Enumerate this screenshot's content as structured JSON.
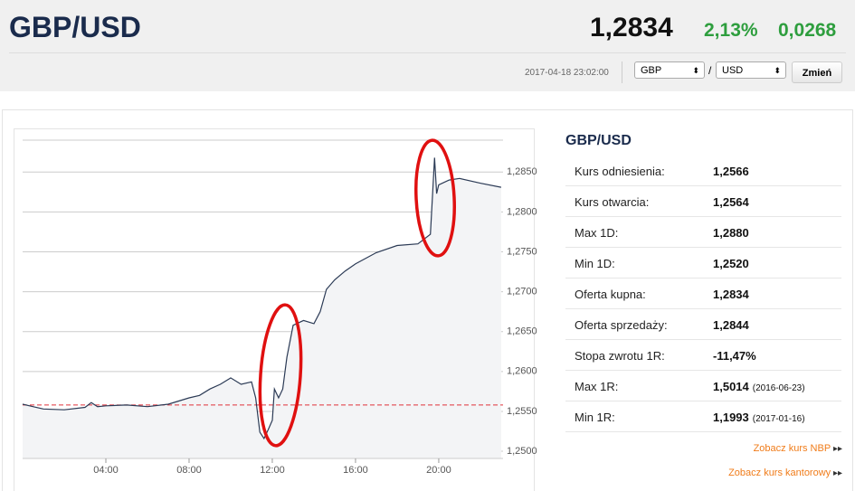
{
  "header": {
    "title": "GBP/USD",
    "price": "1,2834",
    "change_pct": "2,13%",
    "change_abs": "0,0268",
    "timestamp": "2017-04-18 23:02:00",
    "base_currency": "GBP",
    "separator": "/",
    "quote_currency": "USD",
    "button": "Zmień"
  },
  "chart_data": {
    "type": "line",
    "x": [
      0,
      0.5,
      1,
      2,
      3,
      3.3,
      3.6,
      4,
      5,
      6,
      7,
      8,
      8.5,
      9,
      9.5,
      10,
      10.5,
      11,
      11.2,
      11.4,
      11.6,
      11.8,
      12,
      12.1,
      12.3,
      12.5,
      12.7,
      13,
      13.5,
      14,
      14.3,
      14.6,
      15,
      15.5,
      16,
      17,
      18,
      19,
      19.6,
      19.8,
      19.9,
      20,
      20.5,
      21,
      22,
      23
    ],
    "series": [
      {
        "color": "#2b3a55",
        "values": [
          1.2559,
          1.2556,
          1.2553,
          1.2552,
          1.2555,
          1.2561,
          1.2556,
          1.2557,
          1.2558,
          1.2556,
          1.2559,
          1.2567,
          1.257,
          1.2578,
          1.2584,
          1.2592,
          1.2584,
          1.2587,
          1.2567,
          1.2524,
          1.2516,
          1.2527,
          1.2539,
          1.2578,
          1.2567,
          1.2578,
          1.2618,
          1.2658,
          1.2664,
          1.266,
          1.2675,
          1.2703,
          1.2715,
          1.2726,
          1.2735,
          1.2749,
          1.2758,
          1.276,
          1.2772,
          1.2868,
          1.2823,
          1.2834,
          1.284,
          1.2842,
          1.2836,
          1.2831
        ]
      }
    ],
    "xlim": [
      0,
      23.09
    ],
    "ylim": [
      1.2491,
      1.289
    ],
    "xticks": [
      {
        "value": 4,
        "label": "04:00"
      },
      {
        "value": 8,
        "label": "08:00"
      },
      {
        "value": 12,
        "label": "12:00"
      },
      {
        "value": 16,
        "label": "16:00"
      },
      {
        "value": 20,
        "label": "20:00"
      }
    ],
    "yticks": [
      {
        "value": 1.25,
        "label": "1,2500"
      },
      {
        "value": 1.255,
        "label": "1,2550"
      },
      {
        "value": 1.26,
        "label": "1,2600"
      },
      {
        "value": 1.265,
        "label": "1,2650"
      },
      {
        "value": 1.27,
        "label": "1,2700"
      },
      {
        "value": 1.275,
        "label": "1,2750"
      },
      {
        "value": 1.28,
        "label": "1,2800"
      },
      {
        "value": 1.285,
        "label": "1,2850"
      }
    ],
    "reference_line": {
      "value": 1.2558,
      "color": "#e0303a"
    },
    "grid": true
  },
  "table": {
    "title": "GBP/USD",
    "rows": [
      {
        "label": "Kurs odniesienia:",
        "value": "1,2566"
      },
      {
        "label": "Kurs otwarcia:",
        "value": "1,2564"
      },
      {
        "label": "Max 1D:",
        "value": "1,2880"
      },
      {
        "label": "Min 1D:",
        "value": "1,2520"
      },
      {
        "label": "Oferta kupna:",
        "value": "1,2834"
      },
      {
        "label": "Oferta sprzedaży:",
        "value": "1,2844"
      },
      {
        "label": "Stopa zwrotu 1R:",
        "value": "-11,47%"
      },
      {
        "label": "Max 1R:",
        "value": "1,5014",
        "note": "(2016-06-23)"
      },
      {
        "label": "Min 1R:",
        "value": "1,1993",
        "note": "(2017-01-16)"
      }
    ]
  },
  "links": [
    "Zobacz kurs NBP",
    "Zobacz kurs kantorowy"
  ]
}
